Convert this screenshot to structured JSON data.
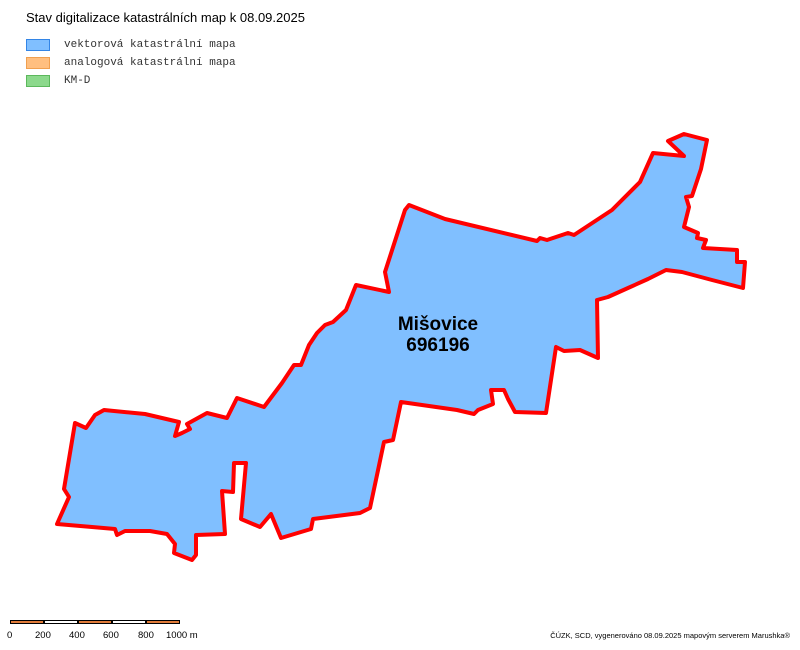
{
  "title": "Stav digitalizace katastrálních map k 08.09.2025",
  "legend": [
    {
      "label": "vektorová katastrální mapa",
      "fill": "#80BFFF",
      "stroke": "#3385E6"
    },
    {
      "label": "analogová katastrální mapa",
      "fill": "#FFBF80",
      "stroke": "#F0A050"
    },
    {
      "label": "KM-D",
      "fill": "#8CD98C",
      "stroke": "#5CB85C"
    }
  ],
  "area": {
    "name": "Mišovice",
    "code": "696196",
    "fill": "#80BFFF",
    "boundary_color": "#FF0000"
  },
  "scalebar": {
    "labels": [
      "0",
      "200",
      "400",
      "600",
      "800",
      "1000 m"
    ],
    "colors": [
      "#E07B39",
      "#FFFFFF",
      "#E07B39",
      "#FFFFFF",
      "#E07B39"
    ]
  },
  "credit": "ČÚZK, SCD, vygenerováno 08.09.2025 mapovým serverem Marushka®"
}
